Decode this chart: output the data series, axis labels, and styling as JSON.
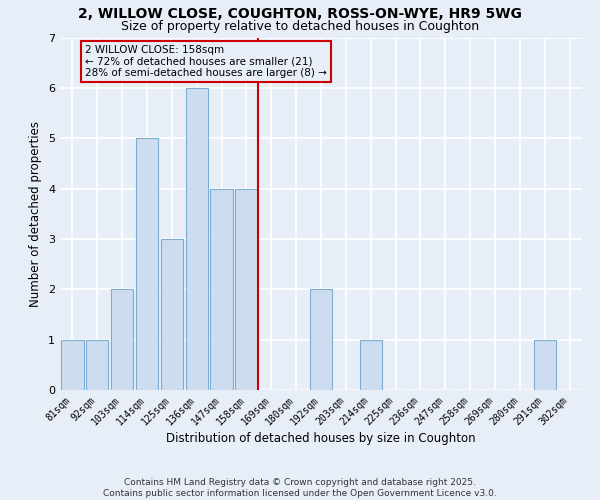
{
  "title": "2, WILLOW CLOSE, COUGHTON, ROSS-ON-WYE, HR9 5WG",
  "subtitle": "Size of property relative to detached houses in Coughton",
  "xlabel": "Distribution of detached houses by size in Coughton",
  "ylabel": "Number of detached properties",
  "categories": [
    "81sqm",
    "92sqm",
    "103sqm",
    "114sqm",
    "125sqm",
    "136sqm",
    "147sqm",
    "158sqm",
    "169sqm",
    "180sqm",
    "192sqm",
    "203sqm",
    "214sqm",
    "225sqm",
    "236sqm",
    "247sqm",
    "258sqm",
    "269sqm",
    "280sqm",
    "291sqm",
    "302sqm"
  ],
  "values": [
    1,
    1,
    2,
    5,
    3,
    6,
    4,
    4,
    0,
    0,
    2,
    0,
    1,
    0,
    0,
    0,
    0,
    0,
    0,
    1,
    0
  ],
  "bar_color": "#cddcee",
  "bar_edge_color": "#7eadd4",
  "vline_index": 7,
  "vline_color": "#cc0000",
  "annotation_text": "2 WILLOW CLOSE: 158sqm\n← 72% of detached houses are smaller (21)\n28% of semi-detached houses are larger (8) →",
  "annotation_box_edgecolor": "#cc0000",
  "annotation_fontsize": 7.5,
  "ylim": [
    0,
    7
  ],
  "yticks": [
    0,
    1,
    2,
    3,
    4,
    5,
    6,
    7
  ],
  "background_color": "#e8eef8",
  "plot_bg_color": "#e8eef8",
  "grid_color": "#ffffff",
  "footer": "Contains HM Land Registry data © Crown copyright and database right 2025.\nContains public sector information licensed under the Open Government Licence v3.0.",
  "title_fontsize": 10,
  "subtitle_fontsize": 9,
  "xlabel_fontsize": 8.5,
  "ylabel_fontsize": 8.5,
  "tick_fontsize": 7,
  "footer_fontsize": 6.5
}
